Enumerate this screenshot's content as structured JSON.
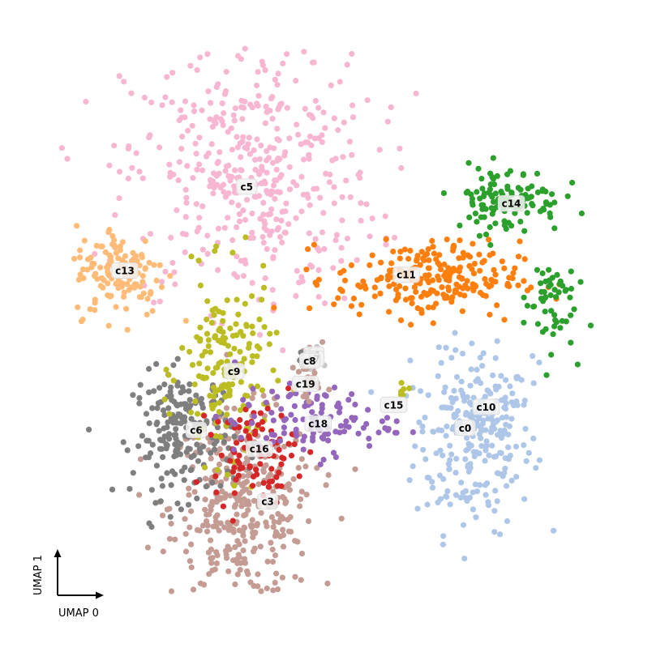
{
  "chart_data": {
    "type": "scatter",
    "title": "",
    "xlabel": "UMAP 0",
    "ylabel": "UMAP 1",
    "axis_style": "arrow-stubs-bottom-left",
    "grid": false,
    "legend": "none (labels drawn on clusters)",
    "xlim": [
      0,
      14
    ],
    "ylim": [
      0,
      14
    ],
    "clusters": [
      {
        "name": "c0",
        "color": "#aec7e8",
        "center": [
          10.5,
          4.5
        ],
        "sx": 0.7,
        "sy": 1.05,
        "n": 210
      },
      {
        "name": "c3",
        "color": "#c49c94",
        "center": [
          5.0,
          3.0
        ],
        "sx": 0.85,
        "sy": 1.1,
        "n": 360
      },
      {
        "name": "c4",
        "color": "#c49c94",
        "center": [
          6.6,
          6.5
        ],
        "sx": 0.15,
        "sy": 0.2,
        "n": 12
      },
      {
        "name": "c5",
        "color": "#f7b6d2",
        "center": [
          5.2,
          10.9
        ],
        "sx": 1.5,
        "sy": 1.6,
        "n": 430
      },
      {
        "name": "c6",
        "color": "#7f7f7f",
        "center": [
          3.6,
          4.7
        ],
        "sx": 0.6,
        "sy": 0.75,
        "n": 200
      },
      {
        "name": "c7",
        "color": "#7f7f7f",
        "center": [
          6.5,
          6.5
        ],
        "sx": 0.15,
        "sy": 0.15,
        "n": 8
      },
      {
        "name": "c8",
        "color": "#c7c7c7",
        "center": [
          6.6,
          6.4
        ],
        "sx": 0.15,
        "sy": 0.15,
        "n": 8
      },
      {
        "name": "c9",
        "color": "#bcbd22",
        "center": [
          4.6,
          6.2
        ],
        "sx": 0.55,
        "sy": 1.1,
        "n": 170
      },
      {
        "name": "c10",
        "color": "#aec7e8",
        "center": [
          10.8,
          5.7
        ],
        "sx": 0.6,
        "sy": 0.6,
        "n": 60
      },
      {
        "name": "c11",
        "color": "#ff7f0e",
        "center": [
          9.4,
          8.4
        ],
        "sx": 1.1,
        "sy": 0.45,
        "n": 230
      },
      {
        "name": "c13",
        "color": "#ffbb78",
        "center": [
          2.1,
          8.6
        ],
        "sx": 0.55,
        "sy": 0.55,
        "n": 130
      },
      {
        "name": "c14",
        "color": "#2ca02c",
        "center": [
          11.3,
          10.3
        ],
        "sx": 0.65,
        "sy": 0.4,
        "n": 120
      },
      {
        "name": "c15",
        "color": "#bcbd22",
        "center": [
          8.8,
          5.8
        ],
        "sx": 0.08,
        "sy": 0.1,
        "n": 6
      },
      {
        "name": "c16",
        "color": "#d62728",
        "center": [
          5.3,
          4.3
        ],
        "sx": 0.5,
        "sy": 0.55,
        "n": 90
      },
      {
        "name": "c18",
        "color": "#9467bd",
        "center": [
          6.7,
          5.0
        ],
        "sx": 0.95,
        "sy": 0.4,
        "n": 110
      },
      {
        "name": "c19",
        "color": "#c49c94",
        "center": [
          6.5,
          5.9
        ],
        "sx": 0.2,
        "sy": 0.3,
        "n": 22
      }
    ],
    "extra_group": {
      "name": "",
      "color": "#2ca02c",
      "center": [
        12.3,
        7.9
      ],
      "sx": 0.3,
      "sy": 0.6,
      "n": 55
    },
    "labels": [
      {
        "name": "c5",
        "pos": [
          5.1,
          10.6
        ]
      },
      {
        "name": "c14",
        "pos": [
          11.4,
          10.2
        ]
      },
      {
        "name": "c13",
        "pos": [
          2.2,
          8.6
        ]
      },
      {
        "name": "c11",
        "pos": [
          8.9,
          8.5
        ]
      },
      {
        "name": "c4",
        "pos": [
          6.7,
          6.6
        ]
      },
      {
        "name": "c7",
        "pos": [
          6.7,
          6.5
        ]
      },
      {
        "name": "c8",
        "pos": [
          6.6,
          6.45
        ]
      },
      {
        "name": "c9",
        "pos": [
          4.8,
          6.2
        ]
      },
      {
        "name": "c19",
        "pos": [
          6.5,
          5.9
        ]
      },
      {
        "name": "c15",
        "pos": [
          8.6,
          5.4
        ]
      },
      {
        "name": "c10",
        "pos": [
          10.8,
          5.35
        ]
      },
      {
        "name": "c18",
        "pos": [
          6.8,
          4.95
        ]
      },
      {
        "name": "c0",
        "pos": [
          10.3,
          4.85
        ]
      },
      {
        "name": "c6",
        "pos": [
          3.9,
          4.8
        ]
      },
      {
        "name": "c16",
        "pos": [
          5.4,
          4.35
        ]
      },
      {
        "name": "c3",
        "pos": [
          5.6,
          3.1
        ]
      }
    ]
  }
}
